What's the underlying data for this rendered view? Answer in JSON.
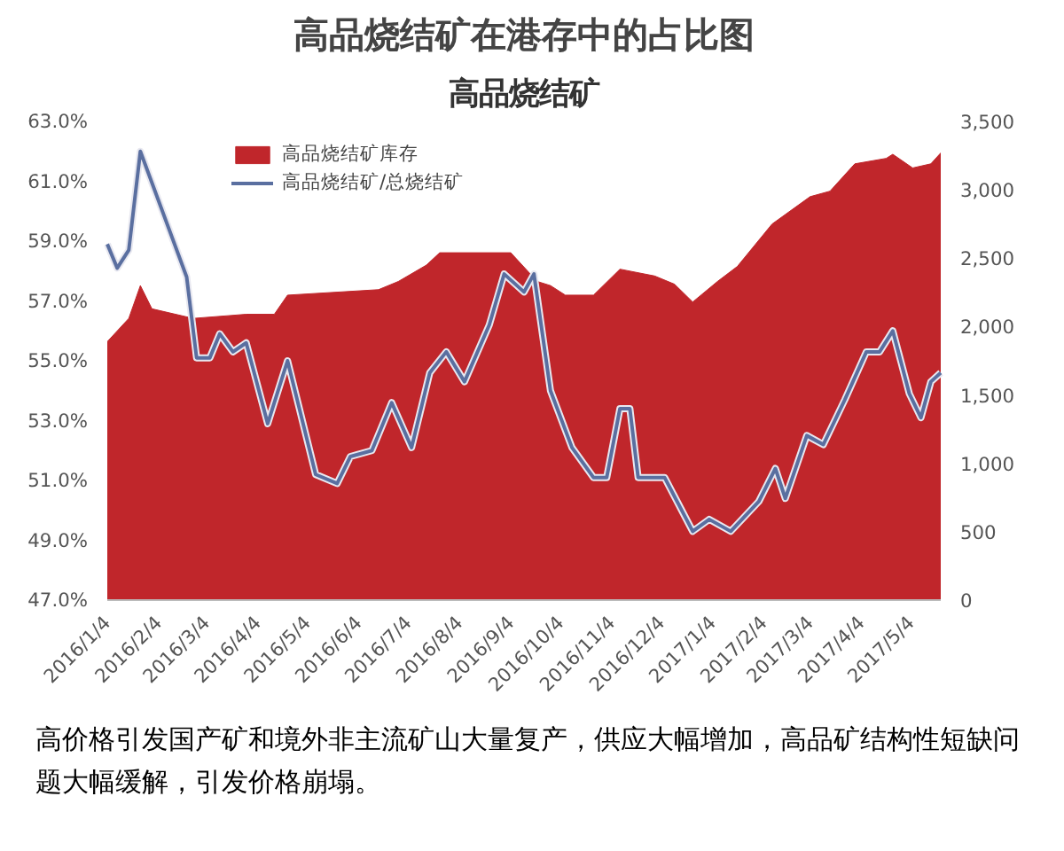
{
  "chart_data": {
    "type": "line",
    "title": "高品烧结矿在港存中的占比图",
    "subtitle": "高品烧结矿",
    "xlim": [
      "2016-01-04",
      "2017-05-22"
    ],
    "xticks": [
      {
        "value": "2016-01-04",
        "label": "2016/1/4"
      },
      {
        "value": "2016-02-04",
        "label": "2016/2/4"
      },
      {
        "value": "2016-03-04",
        "label": "2016/3/4"
      },
      {
        "value": "2016-04-04",
        "label": "2016/4/4"
      },
      {
        "value": "2016-05-04",
        "label": "2016/5/4"
      },
      {
        "value": "2016-06-04",
        "label": "2016/6/4"
      },
      {
        "value": "2016-07-04",
        "label": "2016/7/4"
      },
      {
        "value": "2016-08-04",
        "label": "2016/8/4"
      },
      {
        "value": "2016-09-04",
        "label": "2016/9/4"
      },
      {
        "value": "2016-10-04",
        "label": "2016/10/4"
      },
      {
        "value": "2016-11-04",
        "label": "2016/11/4"
      },
      {
        "value": "2016-12-04",
        "label": "2016/12/4"
      },
      {
        "value": "2017-01-04",
        "label": "2017/1/4"
      },
      {
        "value": "2017-02-04",
        "label": "2017/2/4"
      },
      {
        "value": "2017-03-04",
        "label": "2017/3/4"
      },
      {
        "value": "2017-04-04",
        "label": "2017/4/4"
      },
      {
        "value": "2017-05-04",
        "label": "2017/5/4"
      }
    ],
    "ylim": [
      47,
      63
    ],
    "yticks": [
      {
        "value": 47,
        "label": "47.0%"
      },
      {
        "value": 49,
        "label": "49.0%"
      },
      {
        "value": 51,
        "label": "51.0%"
      },
      {
        "value": 53,
        "label": "53.0%"
      },
      {
        "value": 55,
        "label": "55.0%"
      },
      {
        "value": 57,
        "label": "57.0%"
      },
      {
        "value": 59,
        "label": "59.0%"
      },
      {
        "value": 61,
        "label": "61.0%"
      },
      {
        "value": 63,
        "label": "63.0%"
      }
    ],
    "y2lim": [
      0,
      3500
    ],
    "y2ticks": [
      {
        "value": 0,
        "label": "0"
      },
      {
        "value": 500,
        "label": "500"
      },
      {
        "value": 1000,
        "label": "1,000"
      },
      {
        "value": 1500,
        "label": "1,500"
      },
      {
        "value": 2000,
        "label": "2,000"
      },
      {
        "value": 2500,
        "label": "2,500"
      },
      {
        "value": 3000,
        "label": "3,000"
      },
      {
        "value": 3500,
        "label": "3,500"
      }
    ],
    "series": [
      {
        "name": "高品烧结矿库存",
        "type": "area",
        "axis": "y2",
        "color": "#c0262b",
        "x": [
          "2016-01-04",
          "2016-01-17",
          "2016-01-24",
          "2016-01-31",
          "2016-02-25",
          "2016-03-28",
          "2016-04-14",
          "2016-04-22",
          "2016-06-16",
          "2016-06-28",
          "2016-07-15",
          "2016-07-23",
          "2016-09-04",
          "2016-09-20",
          "2016-09-28",
          "2016-10-07",
          "2016-10-24",
          "2016-11-09",
          "2016-11-30",
          "2016-12-12",
          "2016-12-23",
          "2017-01-07",
          "2017-01-19",
          "2017-02-09",
          "2017-03-04",
          "2017-03-16",
          "2017-03-31",
          "2017-04-19",
          "2017-04-23",
          "2017-05-05",
          "2017-05-16",
          "2017-05-22"
        ],
        "values": [
          1890,
          2060,
          2300,
          2130,
          2060,
          2090,
          2090,
          2230,
          2270,
          2330,
          2450,
          2540,
          2540,
          2330,
          2300,
          2230,
          2230,
          2420,
          2370,
          2310,
          2180,
          2330,
          2440,
          2750,
          2950,
          2990,
          3190,
          3230,
          3260,
          3160,
          3190,
          3270
        ]
      },
      {
        "name": "高品烧结矿/总烧结矿",
        "axis": "y",
        "color": "#5a6fa0",
        "x": [
          "2016-01-04",
          "2016-01-10",
          "2016-01-17",
          "2016-01-24",
          "2016-02-21",
          "2016-02-27",
          "2016-03-06",
          "2016-03-12",
          "2016-03-20",
          "2016-03-28",
          "2016-04-10",
          "2016-04-22",
          "2016-05-09",
          "2016-05-22",
          "2016-05-30",
          "2016-06-12",
          "2016-06-24",
          "2016-07-06",
          "2016-07-17",
          "2016-07-27",
          "2016-08-07",
          "2016-08-22",
          "2016-08-31",
          "2016-09-12",
          "2016-09-18",
          "2016-09-28",
          "2016-10-11",
          "2016-10-24",
          "2016-11-01",
          "2016-11-09",
          "2016-11-15",
          "2016-11-20",
          "2016-12-06",
          "2016-12-23",
          "2017-01-02",
          "2017-01-15",
          "2017-02-01",
          "2017-02-11",
          "2017-02-17",
          "2017-03-02",
          "2017-03-12",
          "2017-03-25",
          "2017-04-07",
          "2017-04-15",
          "2017-04-23",
          "2017-05-03",
          "2017-05-10",
          "2017-05-16",
          "2017-05-22"
        ],
        "values": [
          58.9,
          58.1,
          58.7,
          62.0,
          57.8,
          55.1,
          55.1,
          55.9,
          55.3,
          55.6,
          52.9,
          55.0,
          51.2,
          50.9,
          51.8,
          52.0,
          53.6,
          52.1,
          54.6,
          55.3,
          54.3,
          56.2,
          57.9,
          57.3,
          57.9,
          54.0,
          52.1,
          51.1,
          51.1,
          53.4,
          53.4,
          51.1,
          51.1,
          49.3,
          49.7,
          49.3,
          50.3,
          51.4,
          50.4,
          52.5,
          52.2,
          53.7,
          55.3,
          55.3,
          56.0,
          53.9,
          53.1,
          54.3,
          54.6
        ]
      }
    ],
    "legend": "top left",
    "grid": false,
    "annotations": [
      "高价格引发国产矿和境外非主流矿山大量复产，供应大幅增加，高品矿结构性短缺问题大幅缓解，引发价格崩塌。"
    ]
  }
}
